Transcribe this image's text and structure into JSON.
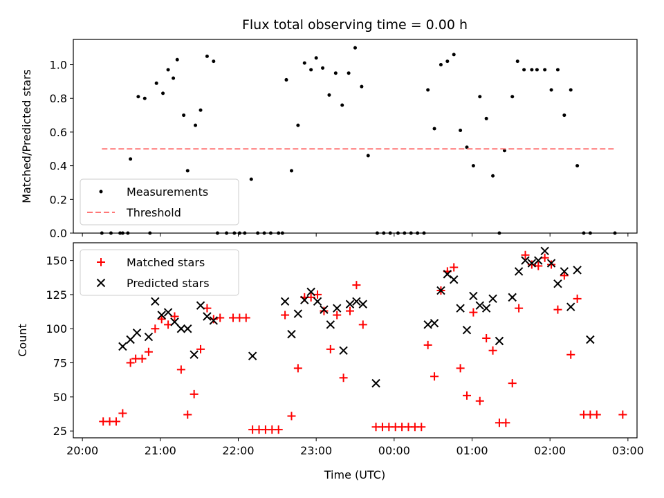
{
  "figure": {
    "title": "Flux total observing time = 0.00 h",
    "xlabel": "Time (UTC)"
  },
  "chart_data": [
    {
      "type": "scatter",
      "ylabel": "Matched/Predicted stars",
      "xlim": [
        "20:00",
        "03:00"
      ],
      "ylim": [
        0,
        1.15
      ],
      "x_ticks": [
        "20:00",
        "21:00",
        "22:00",
        "23:00",
        "00:00",
        "01:00",
        "02:00",
        "03:00"
      ],
      "y_ticks": [
        "0.0",
        "0.2",
        "0.4",
        "0.6",
        "0.8",
        "1.0"
      ],
      "legend": {
        "placement": "lower-left",
        "entries": [
          "Measurements",
          "Threshold"
        ]
      },
      "series": [
        {
          "name": "Measurements",
          "marker": "dot",
          "color": "#000000",
          "points": [
            [
              "20:15",
              0.0
            ],
            [
              "20:22",
              0.0
            ],
            [
              "20:29",
              0.0
            ],
            [
              "20:31",
              0.0
            ],
            [
              "20:35",
              0.0
            ],
            [
              "20:37",
              0.44
            ],
            [
              "20:43",
              0.81
            ],
            [
              "20:48",
              0.8
            ],
            [
              "20:52",
              0.0
            ],
            [
              "20:57",
              0.89
            ],
            [
              "21:02",
              0.83
            ],
            [
              "21:06",
              0.97
            ],
            [
              "21:10",
              0.92
            ],
            [
              "21:13",
              1.03
            ],
            [
              "21:18",
              0.7
            ],
            [
              "21:21",
              0.37
            ],
            [
              "21:27",
              0.64
            ],
            [
              "21:31",
              0.73
            ],
            [
              "21:36",
              1.05
            ],
            [
              "21:41",
              1.02
            ],
            [
              "21:44",
              0.0
            ],
            [
              "21:51",
              0.0
            ],
            [
              "21:57",
              0.0
            ],
            [
              "22:01",
              0.0
            ],
            [
              "22:05",
              0.0
            ],
            [
              "22:10",
              0.32
            ],
            [
              "22:15",
              0.0
            ],
            [
              "22:20",
              0.0
            ],
            [
              "22:25",
              0.0
            ],
            [
              "22:31",
              0.0
            ],
            [
              "22:34",
              0.0
            ],
            [
              "22:37",
              0.91
            ],
            [
              "22:41",
              0.37
            ],
            [
              "22:46",
              0.64
            ],
            [
              "22:51",
              1.01
            ],
            [
              "22:56",
              0.97
            ],
            [
              "23:00",
              1.04
            ],
            [
              "23:05",
              0.98
            ],
            [
              "23:10",
              0.82
            ],
            [
              "23:15",
              0.95
            ],
            [
              "23:20",
              0.76
            ],
            [
              "23:25",
              0.95
            ],
            [
              "23:30",
              1.1
            ],
            [
              "23:35",
              0.87
            ],
            [
              "23:40",
              0.46
            ],
            [
              "23:47",
              0.0
            ],
            [
              "23:52",
              0.0
            ],
            [
              "23:57",
              0.0
            ],
            [
              "00:03",
              0.0
            ],
            [
              "00:08",
              0.0
            ],
            [
              "00:13",
              0.0
            ],
            [
              "00:18",
              0.0
            ],
            [
              "00:23",
              0.0
            ],
            [
              "00:26",
              0.85
            ],
            [
              "00:31",
              0.62
            ],
            [
              "00:36",
              1.0
            ],
            [
              "00:41",
              1.02
            ],
            [
              "00:46",
              1.06
            ],
            [
              "00:51",
              0.61
            ],
            [
              "00:56",
              0.51
            ],
            [
              "01:01",
              0.4
            ],
            [
              "01:06",
              0.81
            ],
            [
              "01:11",
              0.68
            ],
            [
              "01:16",
              0.34
            ],
            [
              "01:21",
              0.0
            ],
            [
              "01:25",
              0.49
            ],
            [
              "01:31",
              0.81
            ],
            [
              "01:35",
              1.02
            ],
            [
              "01:40",
              0.97
            ],
            [
              "01:46",
              0.97
            ],
            [
              "01:50",
              0.97
            ],
            [
              "01:56",
              0.97
            ],
            [
              "02:01",
              0.85
            ],
            [
              "02:06",
              0.97
            ],
            [
              "02:11",
              0.7
            ],
            [
              "02:16",
              0.85
            ],
            [
              "02:21",
              0.4
            ],
            [
              "02:26",
              0.0
            ],
            [
              "02:31",
              0.0
            ],
            [
              "02:50",
              0.0
            ]
          ]
        },
        {
          "name": "Threshold",
          "style": "dashed",
          "color": "#ff7777",
          "x": [
            "20:15",
            "02:50"
          ],
          "y": [
            0.5,
            0.5
          ]
        }
      ]
    },
    {
      "type": "scatter",
      "ylabel": "Count",
      "xlim": [
        "20:00",
        "03:00"
      ],
      "ylim": [
        20,
        163
      ],
      "x_ticks": [
        "20:00",
        "21:00",
        "22:00",
        "23:00",
        "00:00",
        "01:00",
        "02:00",
        "03:00"
      ],
      "y_ticks": [
        "25",
        "50",
        "75",
        "100",
        "125",
        "150"
      ],
      "legend": {
        "placement": "upper-left",
        "entries": [
          "Matched stars",
          "Predicted stars"
        ]
      },
      "series": [
        {
          "name": "Matched stars",
          "marker": "plus",
          "color": "#ff0000",
          "points": [
            [
              "20:16",
              32
            ],
            [
              "20:21",
              32
            ],
            [
              "20:26",
              32
            ],
            [
              "20:31",
              38
            ],
            [
              "20:37",
              75
            ],
            [
              "20:41",
              78
            ],
            [
              "20:46",
              78
            ],
            [
              "20:51",
              83
            ],
            [
              "20:56",
              100
            ],
            [
              "21:01",
              107
            ],
            [
              "21:06",
              103
            ],
            [
              "21:11",
              109
            ],
            [
              "21:16",
              70
            ],
            [
              "21:21",
              37
            ],
            [
              "21:26",
              52
            ],
            [
              "21:31",
              85
            ],
            [
              "21:36",
              115
            ],
            [
              "21:41",
              107
            ],
            [
              "21:46",
              108
            ],
            [
              "21:56",
              108
            ],
            [
              "22:01",
              108
            ],
            [
              "22:06",
              108
            ],
            [
              "22:11",
              26
            ],
            [
              "22:16",
              26
            ],
            [
              "22:21",
              26
            ],
            [
              "22:26",
              26
            ],
            [
              "22:31",
              26
            ],
            [
              "22:36",
              110
            ],
            [
              "22:41",
              36
            ],
            [
              "22:46",
              71
            ],
            [
              "22:51",
              123
            ],
            [
              "22:56",
              123
            ],
            [
              "23:01",
              125
            ],
            [
              "23:06",
              113
            ],
            [
              "23:11",
              85
            ],
            [
              "23:16",
              110
            ],
            [
              "23:21",
              64
            ],
            [
              "23:26",
              113
            ],
            [
              "23:31",
              132
            ],
            [
              "23:36",
              103
            ],
            [
              "23:46",
              28
            ],
            [
              "23:51",
              28
            ],
            [
              "23:56",
              28
            ],
            [
              "00:01",
              28
            ],
            [
              "00:06",
              28
            ],
            [
              "00:11",
              28
            ],
            [
              "00:16",
              28
            ],
            [
              "00:21",
              28
            ],
            [
              "00:26",
              88
            ],
            [
              "00:31",
              65
            ],
            [
              "00:36",
              128
            ],
            [
              "00:41",
              142
            ],
            [
              "00:46",
              145
            ],
            [
              "00:51",
              71
            ],
            [
              "00:56",
              51
            ],
            [
              "01:01",
              112
            ],
            [
              "01:06",
              47
            ],
            [
              "01:11",
              93
            ],
            [
              "01:16",
              84
            ],
            [
              "01:21",
              31
            ],
            [
              "01:26",
              31
            ],
            [
              "01:31",
              60
            ],
            [
              "01:36",
              115
            ],
            [
              "01:41",
              154
            ],
            [
              "01:46",
              147
            ],
            [
              "01:51",
              146
            ],
            [
              "01:56",
              152
            ],
            [
              "02:01",
              147
            ],
            [
              "02:06",
              114
            ],
            [
              "02:11",
              139
            ],
            [
              "02:16",
              81
            ],
            [
              "02:21",
              122
            ],
            [
              "02:26",
              37
            ],
            [
              "02:31",
              37
            ],
            [
              "02:36",
              37
            ],
            [
              "02:56",
              37
            ]
          ]
        },
        {
          "name": "Predicted stars",
          "marker": "x",
          "color": "#000000",
          "points": [
            [
              "20:31",
              87
            ],
            [
              "20:37",
              92
            ],
            [
              "20:42",
              97
            ],
            [
              "20:51",
              94
            ],
            [
              "20:56",
              120
            ],
            [
              "21:01",
              110
            ],
            [
              "21:06",
              112
            ],
            [
              "21:11",
              105
            ],
            [
              "21:16",
              100
            ],
            [
              "21:21",
              100
            ],
            [
              "21:26",
              81
            ],
            [
              "21:31",
              117
            ],
            [
              "21:36",
              109
            ],
            [
              "21:41",
              106
            ],
            [
              "22:11",
              80
            ],
            [
              "22:36",
              120
            ],
            [
              "22:41",
              96
            ],
            [
              "22:46",
              111
            ],
            [
              "22:51",
              121
            ],
            [
              "22:56",
              127
            ],
            [
              "23:01",
              120
            ],
            [
              "23:06",
              114
            ],
            [
              "23:11",
              103
            ],
            [
              "23:16",
              115
            ],
            [
              "23:21",
              84
            ],
            [
              "23:26",
              118
            ],
            [
              "23:31",
              120
            ],
            [
              "23:36",
              118
            ],
            [
              "23:46",
              60
            ],
            [
              "00:26",
              103
            ],
            [
              "00:31",
              104
            ],
            [
              "00:36",
              128
            ],
            [
              "00:41",
              140
            ],
            [
              "00:46",
              136
            ],
            [
              "00:51",
              115
            ],
            [
              "00:56",
              99
            ],
            [
              "01:01",
              124
            ],
            [
              "01:06",
              117
            ],
            [
              "01:11",
              115
            ],
            [
              "01:16",
              122
            ],
            [
              "01:21",
              91
            ],
            [
              "01:31",
              123
            ],
            [
              "01:36",
              142
            ],
            [
              "01:41",
              150
            ],
            [
              "01:46",
              148
            ],
            [
              "01:51",
              150
            ],
            [
              "01:56",
              157
            ],
            [
              "02:01",
              148
            ],
            [
              "02:06",
              133
            ],
            [
              "02:11",
              142
            ],
            [
              "02:16",
              116
            ],
            [
              "02:21",
              143
            ],
            [
              "02:31",
              92
            ]
          ]
        }
      ]
    }
  ]
}
